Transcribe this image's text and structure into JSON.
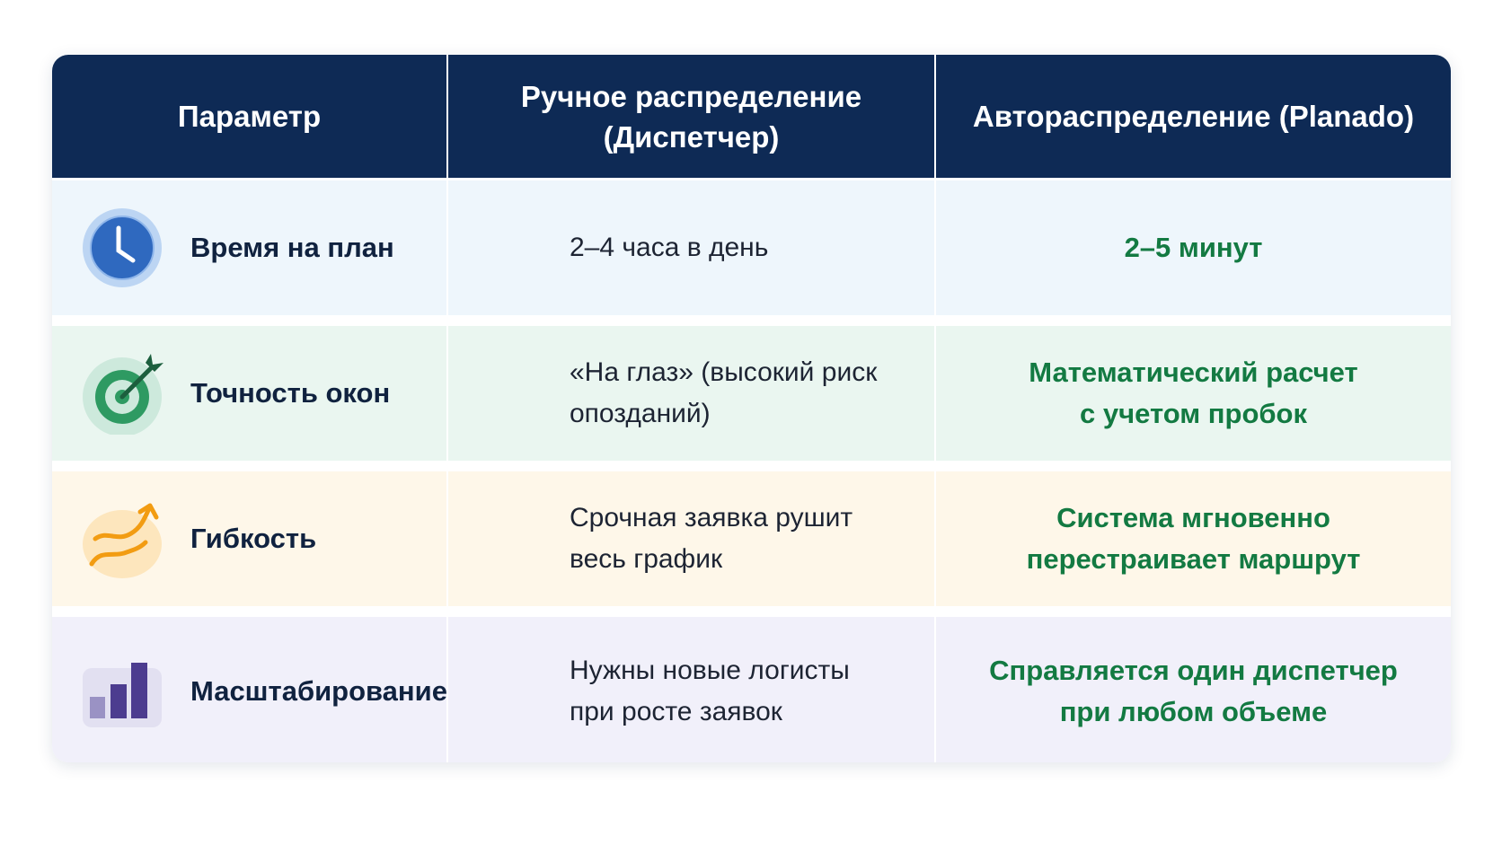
{
  "header": {
    "col1": "Параметр",
    "col2": "Ручное распределение\n(Диспетчер)",
    "col3": "Автораспределение (Planado)"
  },
  "rows": [
    {
      "icon": "clock-icon",
      "param": "Время на план",
      "manual": "2–4 часа в день",
      "auto": "2–5 минут"
    },
    {
      "icon": "target-dart-icon",
      "param": "Точность окон",
      "manual": "«На глаз» (высокий риск\nопозданий)",
      "auto": "Математический расчет\nс учетом пробок"
    },
    {
      "icon": "wavy-arrow-up-icon",
      "param": "Гибкость",
      "manual": "Срочная заявка рушит\nвесь график",
      "auto": "Система мгновенно\nперестраивает маршрут"
    },
    {
      "icon": "bar-chart-icon",
      "param": "Масштабирование",
      "manual": "Нужны новые логисты\nпри росте заявок",
      "auto": "Справляется один диспетчер\nпри любом объеме"
    }
  ],
  "colors": {
    "header": "#0e2a55",
    "accent_green": "#137a42",
    "text_dark": "#10223f"
  }
}
